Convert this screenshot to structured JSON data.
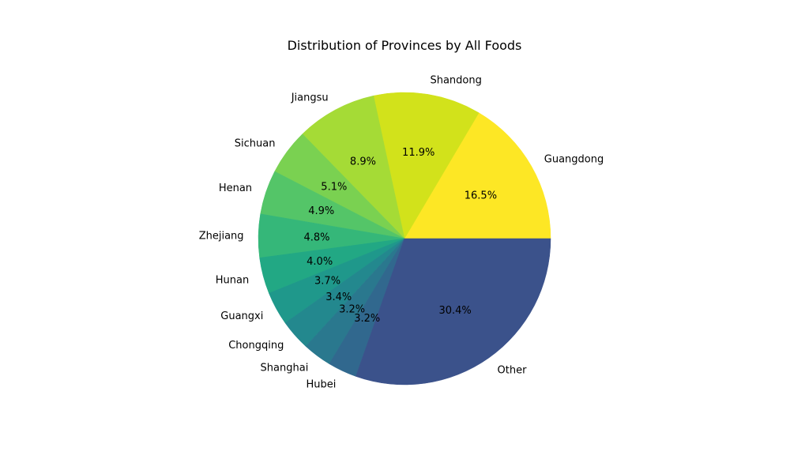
{
  "chart_data": {
    "type": "pie",
    "title": "Distribution of Provinces by All Foods",
    "start_angle_deg": 0,
    "direction": "counterclockwise",
    "slices": [
      {
        "label": "Guangdong",
        "value": 16.5,
        "pct_text": "16.5%",
        "color": "#fde725"
      },
      {
        "label": "Shandong",
        "value": 11.9,
        "pct_text": "11.9%",
        "color": "#d2e21b"
      },
      {
        "label": "Jiangsu",
        "value": 8.9,
        "pct_text": "8.9%",
        "color": "#a5db36"
      },
      {
        "label": "Sichuan",
        "value": 5.1,
        "pct_text": "5.1%",
        "color": "#7ad151"
      },
      {
        "label": "Henan",
        "value": 4.9,
        "pct_text": "4.9%",
        "color": "#54c568"
      },
      {
        "label": "Zhejiang",
        "value": 4.8,
        "pct_text": "4.8%",
        "color": "#35b779"
      },
      {
        "label": "Hunan",
        "value": 4.0,
        "pct_text": "4.0%",
        "color": "#22a884"
      },
      {
        "label": "Guangxi",
        "value": 3.7,
        "pct_text": "3.7%",
        "color": "#1f988b"
      },
      {
        "label": "Chongqing",
        "value": 3.4,
        "pct_text": "3.4%",
        "color": "#23888e"
      },
      {
        "label": "Shanghai",
        "value": 3.2,
        "pct_text": "3.2%",
        "color": "#2a788e"
      },
      {
        "label": "Hubei",
        "value": 3.2,
        "pct_text": "3.2%",
        "color": "#31688e"
      },
      {
        "label": "Other",
        "value": 30.4,
        "pct_text": "30.4%",
        "color": "#3b528b"
      }
    ]
  }
}
